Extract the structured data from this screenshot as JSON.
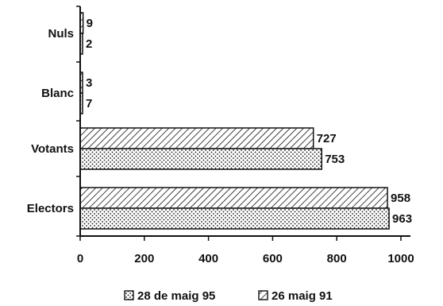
{
  "chart_data": {
    "type": "bar",
    "orientation": "horizontal",
    "categories": [
      "Electors",
      "Votants",
      "Blanc",
      "Nuls"
    ],
    "series": [
      {
        "name": "26 maig 91",
        "pattern": "diagonal-hatch",
        "values": [
          958,
          727,
          3,
          9
        ]
      },
      {
        "name": "28 de maig 95",
        "pattern": "dots",
        "values": [
          963,
          753,
          7,
          2
        ]
      }
    ],
    "xlim": [
      0,
      1000
    ],
    "xticks": [
      "0",
      "200",
      "400",
      "600",
      "800",
      "1000"
    ],
    "grid": false,
    "legend_position": "bottom",
    "legend": [
      {
        "label": "28 de maig 95",
        "pattern": "dots"
      },
      {
        "label": "26 maig 91",
        "pattern": "diagonal-hatch"
      }
    ],
    "colors": {
      "ink": "#111111",
      "background": "#ffffff"
    }
  }
}
